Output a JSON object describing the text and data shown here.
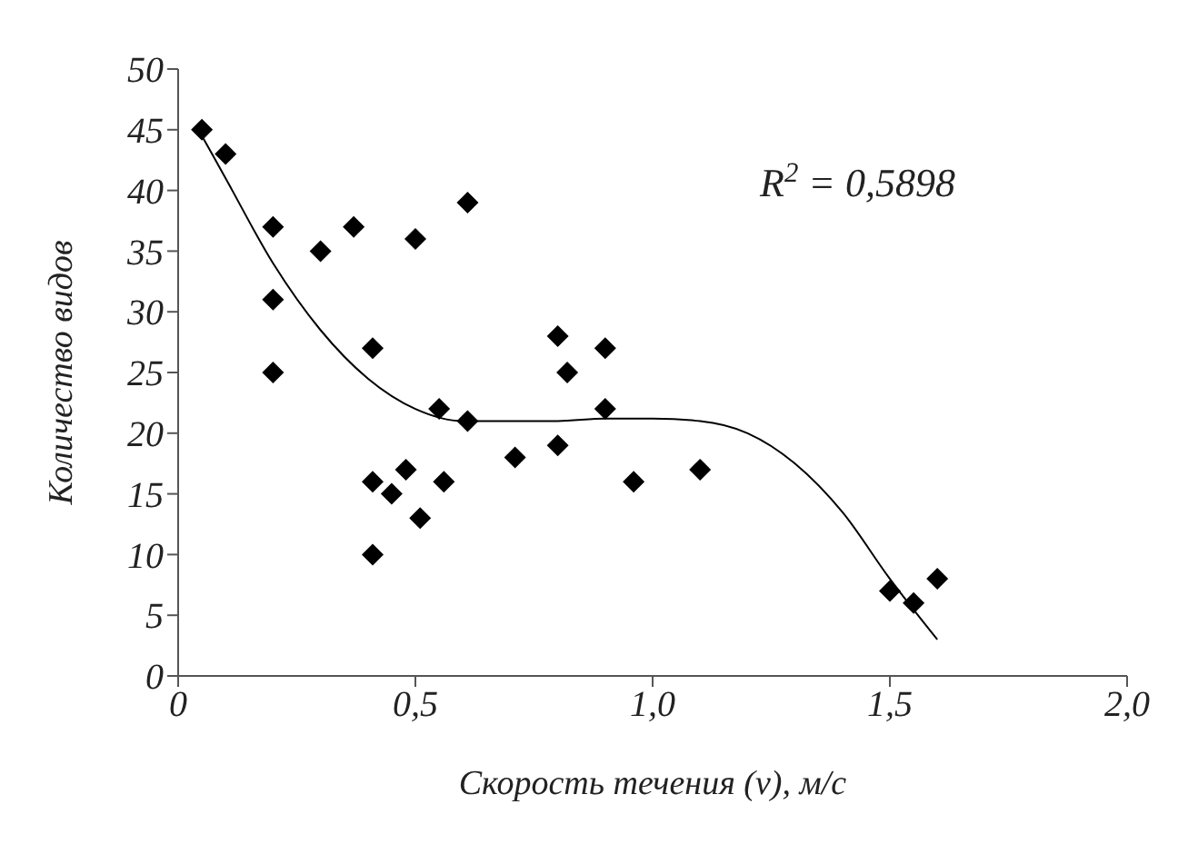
{
  "chart_data": {
    "type": "scatter",
    "xlabel": "Скорость течения (v), м/с",
    "ylabel": "Количество видов",
    "annotations": [
      "R$^{2}$ = 0,5898"
    ],
    "xlim": [
      0,
      2
    ],
    "ylim": [
      0,
      50
    ],
    "xticks": [
      {
        "value": 0,
        "label": "0"
      },
      {
        "value": 0.5,
        "label": "0,5"
      },
      {
        "value": 1,
        "label": "1,0"
      },
      {
        "value": 1.5,
        "label": "1,5"
      },
      {
        "value": 2,
        "label": "2,0"
      }
    ],
    "yticks": [
      0,
      5,
      10,
      15,
      20,
      25,
      30,
      35,
      40,
      45,
      50
    ],
    "series": [
      {
        "marker": "diamond",
        "color": "#000000",
        "x": [
          0.05,
          0.1,
          0.2,
          0.2,
          0.2,
          0.3,
          0.37,
          0.5,
          0.61,
          0.41,
          0.41,
          0.45,
          0.48,
          0.51,
          0.41,
          0.55,
          0.56,
          0.61,
          0.71,
          0.8,
          0.82,
          0.8,
          0.9,
          0.9,
          0.96,
          1.1,
          1.5,
          1.55,
          1.6
        ],
        "values": [
          45,
          43,
          37,
          31,
          25,
          35,
          37,
          36,
          39,
          27,
          16,
          15,
          17,
          13,
          10,
          22,
          16,
          21,
          18,
          28,
          25,
          19,
          27,
          22,
          16,
          17,
          7,
          6,
          8
        ]
      },
      {
        "type": "line",
        "marker": "none",
        "color": "#000000",
        "x": [
          0.05,
          0.1,
          0.2,
          0.3,
          0.4,
          0.5,
          0.6,
          0.7,
          0.8,
          0.9,
          1.0,
          1.1,
          1.2,
          1.3,
          1.4,
          1.5,
          1.6
        ],
        "values": [
          44.5,
          41,
          34,
          28.5,
          24.5,
          22,
          21,
          21,
          21,
          21.2,
          21.2,
          21,
          20,
          17.5,
          13.5,
          8,
          3
        ]
      }
    ]
  }
}
